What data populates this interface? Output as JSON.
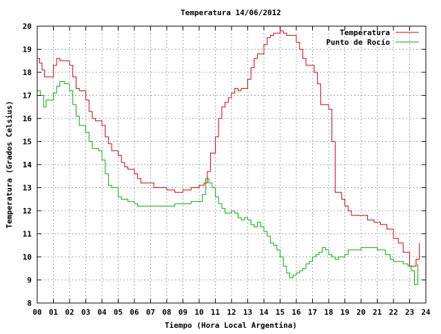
{
  "chart_data": {
    "type": "line",
    "title": "Temperatura 14/06/2012",
    "xlabel": "Tiempo (Hora Local Argentina)",
    "ylabel": "Temperatura (Grados Celsius)",
    "xlim": [
      0,
      24
    ],
    "ylim": [
      8,
      20
    ],
    "x_ticks": [
      0,
      1,
      2,
      3,
      4,
      5,
      6,
      7,
      8,
      9,
      10,
      11,
      12,
      13,
      14,
      15,
      16,
      17,
      18,
      19,
      20,
      21,
      22,
      23,
      24
    ],
    "x_tick_labels": [
      "00",
      "01",
      "02",
      "03",
      "04",
      "05",
      "06",
      "07",
      "08",
      "09",
      "10",
      "11",
      "12",
      "13",
      "14",
      "15",
      "16",
      "17",
      "18",
      "19",
      "20",
      "21",
      "22",
      "23",
      "24"
    ],
    "y_ticks": [
      8,
      9,
      10,
      11,
      12,
      13,
      14,
      15,
      16,
      17,
      18,
      19,
      20
    ],
    "y_tick_labels": [
      "8",
      "9",
      "10",
      "11",
      "12",
      "13",
      "14",
      "15",
      "16",
      "17",
      "18",
      "19",
      "20"
    ],
    "grid": true,
    "legend_position": "top-right",
    "series": [
      {
        "name": "Temperatura",
        "color": "#cc0000",
        "x": [
          0.0,
          0.15,
          0.3,
          0.45,
          0.6,
          1.0,
          1.2,
          1.4,
          1.7,
          2.0,
          2.2,
          2.4,
          2.6,
          3.0,
          3.2,
          3.4,
          3.6,
          3.8,
          4.0,
          4.2,
          4.4,
          4.6,
          5.0,
          5.2,
          5.4,
          5.6,
          6.0,
          6.2,
          6.4,
          6.8,
          7.2,
          7.6,
          8.0,
          8.5,
          9.0,
          9.5,
          10.0,
          10.3,
          10.5,
          10.7,
          11.0,
          11.2,
          11.4,
          11.6,
          11.8,
          12.0,
          12.2,
          12.4,
          12.6,
          13.0,
          13.2,
          13.4,
          13.6,
          14.0,
          14.2,
          14.4,
          14.6,
          15.0,
          15.2,
          15.4,
          15.6,
          15.8,
          16.0,
          16.2,
          16.4,
          16.6,
          16.9,
          17.1,
          17.3,
          17.5,
          18.0,
          18.2,
          18.4,
          18.6,
          18.8,
          19.0,
          19.2,
          19.4,
          20.0,
          20.4,
          20.8,
          21.2,
          21.6,
          22.0,
          22.3,
          22.6,
          23.0,
          23.2,
          23.4,
          23.6
        ],
        "values": [
          18.6,
          18.4,
          18.1,
          17.8,
          17.8,
          18.3,
          18.6,
          18.5,
          18.5,
          18.3,
          17.8,
          17.3,
          17.2,
          16.8,
          16.3,
          16.0,
          15.9,
          15.9,
          15.7,
          15.2,
          14.9,
          14.6,
          14.4,
          14.1,
          13.9,
          13.8,
          13.6,
          13.4,
          13.2,
          13.2,
          13.0,
          13.0,
          12.9,
          12.8,
          12.9,
          13.0,
          13.1,
          13.2,
          13.7,
          14.5,
          15.2,
          16.0,
          16.5,
          16.7,
          16.9,
          17.1,
          17.3,
          17.2,
          17.3,
          17.7,
          18.2,
          18.6,
          18.8,
          19.2,
          19.5,
          19.6,
          19.7,
          19.8,
          19.7,
          19.6,
          19.6,
          19.6,
          19.3,
          19.0,
          18.6,
          18.3,
          18.3,
          18.0,
          17.5,
          16.6,
          16.4,
          15.0,
          12.8,
          12.8,
          12.5,
          12.2,
          12.0,
          11.8,
          11.8,
          11.6,
          11.5,
          11.4,
          11.2,
          10.8,
          10.6,
          10.2,
          9.6,
          9.6,
          9.9,
          10.6
        ]
      },
      {
        "name": "Punto de Rocío",
        "color": "#00aa00",
        "x": [
          0.0,
          0.2,
          0.4,
          0.55,
          0.7,
          1.0,
          1.2,
          1.4,
          1.7,
          2.0,
          2.2,
          2.4,
          2.6,
          3.0,
          3.2,
          3.4,
          3.6,
          3.8,
          4.0,
          4.2,
          4.4,
          4.6,
          5.0,
          5.2,
          5.4,
          5.6,
          6.0,
          6.2,
          6.5,
          7.0,
          7.5,
          8.0,
          8.5,
          9.0,
          9.5,
          10.0,
          10.2,
          10.4,
          10.6,
          10.8,
          11.0,
          11.2,
          11.4,
          11.6,
          11.8,
          12.0,
          12.2,
          12.4,
          12.6,
          12.8,
          13.0,
          13.2,
          13.4,
          13.6,
          13.8,
          14.0,
          14.2,
          14.4,
          14.6,
          14.8,
          15.0,
          15.2,
          15.4,
          15.6,
          15.8,
          16.0,
          16.2,
          16.4,
          16.6,
          16.8,
          17.0,
          17.2,
          17.4,
          17.6,
          17.8,
          18.0,
          18.2,
          18.4,
          18.6,
          18.8,
          19.0,
          19.2,
          19.5,
          20.0,
          20.5,
          21.0,
          21.2,
          21.5,
          21.8,
          22.0,
          22.3,
          22.6,
          22.9,
          23.1,
          23.3,
          23.5
        ],
        "values": [
          17.2,
          17.0,
          16.5,
          16.8,
          16.8,
          17.1,
          17.4,
          17.6,
          17.5,
          17.2,
          16.6,
          16.1,
          15.7,
          15.4,
          15.0,
          14.7,
          14.7,
          14.6,
          14.2,
          13.6,
          13.1,
          13.0,
          12.6,
          12.5,
          12.5,
          12.4,
          12.3,
          12.2,
          12.2,
          12.2,
          12.2,
          12.2,
          12.3,
          12.3,
          12.4,
          12.4,
          12.7,
          13.4,
          13.2,
          13.0,
          12.6,
          12.3,
          12.1,
          11.9,
          11.9,
          12.0,
          11.9,
          11.7,
          11.6,
          11.7,
          11.6,
          11.4,
          11.3,
          11.5,
          11.3,
          11.1,
          10.9,
          10.6,
          10.5,
          10.3,
          10.0,
          9.6,
          9.3,
          9.1,
          9.2,
          9.3,
          9.4,
          9.5,
          9.7,
          9.8,
          10.0,
          10.1,
          10.2,
          10.4,
          10.3,
          10.1,
          10.0,
          9.9,
          10.0,
          10.0,
          10.1,
          10.3,
          10.3,
          10.4,
          10.4,
          10.3,
          10.3,
          10.1,
          9.9,
          9.8,
          9.8,
          9.7,
          9.6,
          9.4,
          8.8,
          9.7
        ]
      }
    ]
  }
}
